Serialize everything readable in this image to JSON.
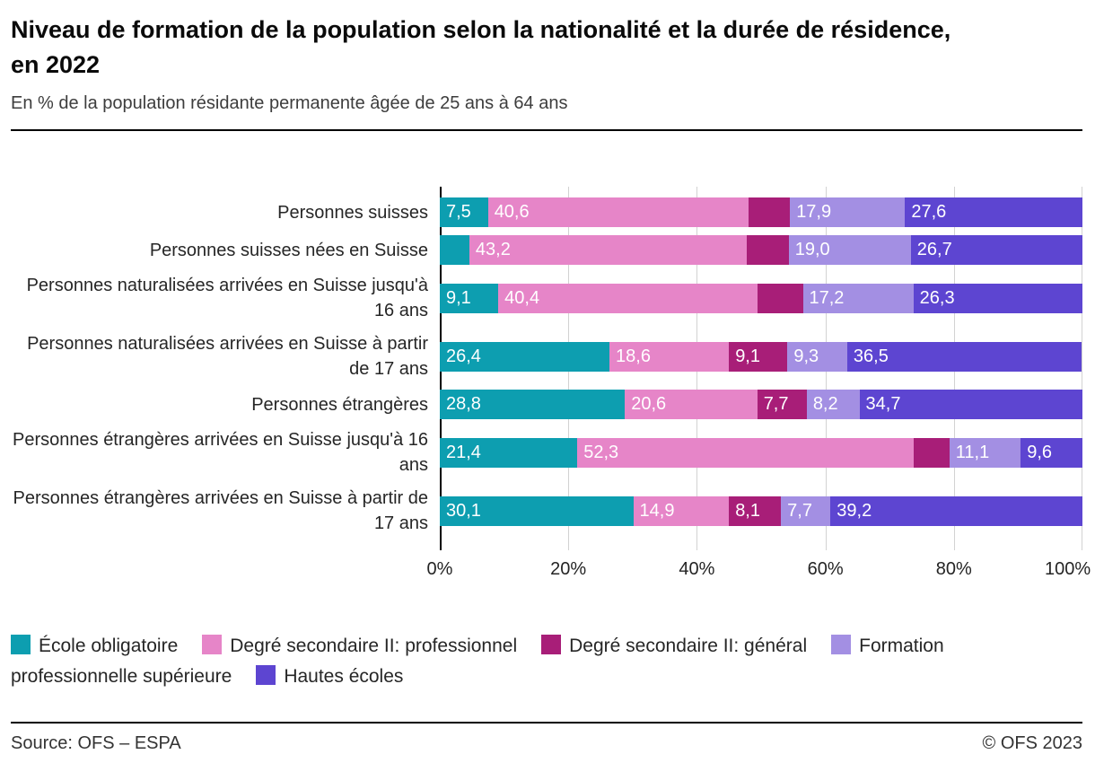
{
  "chart_data": {
    "type": "bar",
    "orientation": "horizontal",
    "stacked": true,
    "title": "Niveau de formation de la population selon la nationalité et la durée de résidence, en 2022",
    "subtitle": "En % de la population résidante permanente âgée de 25 ans à 64 ans",
    "categories": [
      "Personnes suisses",
      "Personnes suisses nées en Suisse",
      "Personnes naturalisées arrivées en Suisse jusqu'à 16 ans",
      "Personnes naturalisées arrivées en Suisse à partir de 17 ans",
      "Personnes étrangères",
      "Personnes étrangères arrivées en Suisse jusqu'à 16 ans",
      "Personnes étrangères arrivées en Suisse à partir de 17 ans"
    ],
    "series": [
      {
        "name": "École obligatoire",
        "color": "#0D9EB0",
        "values": [
          7.5,
          4.6,
          9.1,
          26.4,
          28.8,
          21.4,
          30.1
        ],
        "bar_labels": [
          "7,5",
          "",
          "9,1",
          "26,4",
          "28,8",
          "21,4",
          "30,1"
        ]
      },
      {
        "name": "Degré secondaire II: professionnel",
        "color": "#E685C8",
        "values": [
          40.6,
          43.2,
          40.4,
          18.6,
          20.6,
          52.3,
          14.9
        ],
        "bar_labels": [
          "40,6",
          "43,2",
          "40,4",
          "18,6",
          "20,6",
          "52,3",
          "14,9"
        ]
      },
      {
        "name": "Degré secondaire II: général",
        "color": "#A81E78",
        "values": [
          6.4,
          6.5,
          7.0,
          9.1,
          7.7,
          5.6,
          8.1
        ],
        "bar_labels": [
          "",
          "",
          "",
          "9,1",
          "7,7",
          "",
          "8,1"
        ]
      },
      {
        "name": "Formation professionnelle supérieure",
        "color": "#A38FE3",
        "values": [
          17.9,
          19.0,
          17.2,
          9.3,
          8.2,
          11.1,
          7.7
        ],
        "bar_labels": [
          "17,9",
          "19,0",
          "17,2",
          "9,3",
          "8,2",
          "11,1",
          "7,7"
        ]
      },
      {
        "name": "Hautes écoles",
        "color": "#5D45D1",
        "values": [
          27.6,
          26.7,
          26.3,
          36.5,
          34.7,
          9.6,
          39.2
        ],
        "bar_labels": [
          "27,6",
          "26,7",
          "26,3",
          "36,5",
          "34,7",
          "9,6",
          "39,2"
        ]
      }
    ],
    "x_axis": {
      "min": 0,
      "max": 100,
      "tick_values": [
        0,
        20,
        40,
        60,
        80,
        100
      ],
      "tick_labels": [
        "0%",
        "20%",
        "40%",
        "60%",
        "80%",
        "100%"
      ],
      "grid": true
    },
    "legend_position": "bottom"
  },
  "footer": {
    "source": "Source: OFS – ESPA",
    "copyright": "© OFS 2023"
  }
}
